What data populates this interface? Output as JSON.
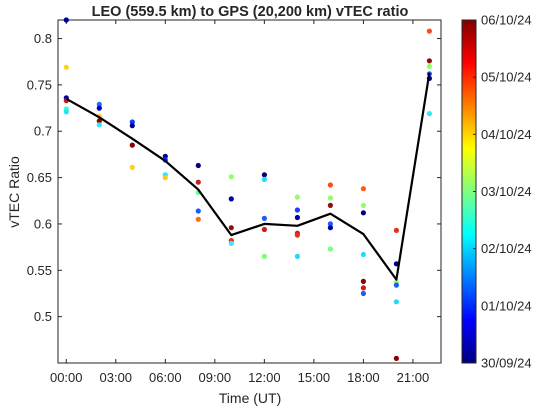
{
  "chart_data": {
    "type": "scatter",
    "title": "LEO (559.5 km) to GPS (20,200 km) vTEC ratio",
    "xlabel": "Time (UT)",
    "ylabel": "vTEC Ratio",
    "xlim": [
      -0.5,
      22.7
    ],
    "ylim": [
      0.45,
      0.82
    ],
    "xticks": [
      0,
      3,
      6,
      9,
      12,
      15,
      18,
      21
    ],
    "xtick_labels": [
      "00:00",
      "03:00",
      "06:00",
      "09:00",
      "12:00",
      "15:00",
      "18:00",
      "21:00"
    ],
    "yticks": [
      0.5,
      0.55,
      0.6,
      0.65,
      0.7,
      0.75,
      0.8
    ],
    "ytick_labels": [
      "0.5",
      "0.55",
      "0.6",
      "0.65",
      "0.7",
      "0.75",
      "0.8"
    ],
    "grid": false,
    "mean_line": {
      "color": "#000000",
      "x": [
        0,
        2,
        4,
        6,
        8,
        10,
        12,
        14,
        16,
        18,
        20,
        22
      ],
      "y": [
        0.735,
        0.715,
        0.692,
        0.668,
        0.637,
        0.588,
        0.6,
        0.598,
        0.611,
        0.589,
        0.54,
        0.763
      ]
    },
    "points": [
      {
        "x": 0,
        "y": 0.82,
        "color": "#00008f"
      },
      {
        "x": 0,
        "y": 0.769,
        "color": "#ffd21a"
      },
      {
        "x": 0,
        "y": 0.736,
        "color": "#0000a0"
      },
      {
        "x": 0,
        "y": 0.733,
        "color": "#c81a1a"
      },
      {
        "x": 0,
        "y": 0.724,
        "color": "#3bffc4"
      },
      {
        "x": 0,
        "y": 0.721,
        "color": "#25e0ff"
      },
      {
        "x": 2,
        "y": 0.729,
        "color": "#1e6fff"
      },
      {
        "x": 2,
        "y": 0.725,
        "color": "#0000c8"
      },
      {
        "x": 2,
        "y": 0.716,
        "color": "#ffd21a"
      },
      {
        "x": 2,
        "y": 0.711,
        "color": "#8f0000"
      },
      {
        "x": 2,
        "y": 0.707,
        "color": "#35e6ff"
      },
      {
        "x": 4,
        "y": 0.71,
        "color": "#0a3cff"
      },
      {
        "x": 4,
        "y": 0.706,
        "color": "#000090"
      },
      {
        "x": 4,
        "y": 0.685,
        "color": "#8f0000"
      },
      {
        "x": 4,
        "y": 0.661,
        "color": "#ffd21a"
      },
      {
        "x": 6,
        "y": 0.673,
        "color": "#00007f"
      },
      {
        "x": 6,
        "y": 0.669,
        "color": "#0a30ff"
      },
      {
        "x": 6,
        "y": 0.653,
        "color": "#25e6ff"
      },
      {
        "x": 6,
        "y": 0.65,
        "color": "#ffc81a"
      },
      {
        "x": 8,
        "y": 0.663,
        "color": "#00007f"
      },
      {
        "x": 8,
        "y": 0.645,
        "color": "#c81e1e"
      },
      {
        "x": 8,
        "y": 0.634,
        "color": "#5aff8f"
      },
      {
        "x": 8,
        "y": 0.614,
        "color": "#1e5aff"
      },
      {
        "x": 8,
        "y": 0.605,
        "color": "#ff6a1a"
      },
      {
        "x": 10,
        "y": 0.651,
        "color": "#8fff6a"
      },
      {
        "x": 10,
        "y": 0.627,
        "color": "#0000aa"
      },
      {
        "x": 10,
        "y": 0.596,
        "color": "#8f1010"
      },
      {
        "x": 10,
        "y": 0.582,
        "color": "#e8301a"
      },
      {
        "x": 10,
        "y": 0.579,
        "color": "#35e6ff"
      },
      {
        "x": 12,
        "y": 0.653,
        "color": "#00006f"
      },
      {
        "x": 12,
        "y": 0.648,
        "color": "#25d8ff"
      },
      {
        "x": 12,
        "y": 0.606,
        "color": "#1e5aff"
      },
      {
        "x": 12,
        "y": 0.594,
        "color": "#c81e1e"
      },
      {
        "x": 12,
        "y": 0.565,
        "color": "#7aff7a"
      },
      {
        "x": 14,
        "y": 0.629,
        "color": "#8fff6a"
      },
      {
        "x": 14,
        "y": 0.615,
        "color": "#1e3cff"
      },
      {
        "x": 14,
        "y": 0.607,
        "color": "#0000a0"
      },
      {
        "x": 14,
        "y": 0.59,
        "color": "#c81e1e"
      },
      {
        "x": 14,
        "y": 0.588,
        "color": "#e8301a"
      },
      {
        "x": 14,
        "y": 0.565,
        "color": "#25d8ff"
      },
      {
        "x": 16,
        "y": 0.642,
        "color": "#ff4a1a"
      },
      {
        "x": 16,
        "y": 0.628,
        "color": "#8fff6a"
      },
      {
        "x": 16,
        "y": 0.62,
        "color": "#8f1010"
      },
      {
        "x": 16,
        "y": 0.6,
        "color": "#1e5aff"
      },
      {
        "x": 16,
        "y": 0.596,
        "color": "#0000aa"
      },
      {
        "x": 16,
        "y": 0.573,
        "color": "#7aff7a"
      },
      {
        "x": 18,
        "y": 0.638,
        "color": "#ff5a1a"
      },
      {
        "x": 18,
        "y": 0.62,
        "color": "#8fff6a"
      },
      {
        "x": 18,
        "y": 0.612,
        "color": "#00007f"
      },
      {
        "x": 18,
        "y": 0.567,
        "color": "#25d8ff"
      },
      {
        "x": 18,
        "y": 0.538,
        "color": "#8f0000"
      },
      {
        "x": 18,
        "y": 0.531,
        "color": "#c81e1e"
      },
      {
        "x": 18,
        "y": 0.525,
        "color": "#1e5aff"
      },
      {
        "x": 20,
        "y": 0.593,
        "color": "#e8301a"
      },
      {
        "x": 20,
        "y": 0.557,
        "color": "#000090"
      },
      {
        "x": 20,
        "y": 0.537,
        "color": "#8fff6a"
      },
      {
        "x": 20,
        "y": 0.534,
        "color": "#1e5aff"
      },
      {
        "x": 20,
        "y": 0.516,
        "color": "#25d8ff"
      },
      {
        "x": 20,
        "y": 0.455,
        "color": "#8f0000"
      },
      {
        "x": 22,
        "y": 0.808,
        "color": "#ff4a1a"
      },
      {
        "x": 22,
        "y": 0.776,
        "color": "#8f1010"
      },
      {
        "x": 22,
        "y": 0.77,
        "color": "#8fff6a"
      },
      {
        "x": 22,
        "y": 0.762,
        "color": "#1e5aff"
      },
      {
        "x": 22,
        "y": 0.757,
        "color": "#0000aa"
      },
      {
        "x": 22,
        "y": 0.719,
        "color": "#35e6ff"
      }
    ],
    "colorbar": {
      "colormap": "jet",
      "tick_labels": [
        "30/09/24",
        "01/10/24",
        "02/10/24",
        "03/10/24",
        "04/10/24",
        "05/10/24",
        "06/10/24"
      ],
      "stops": [
        "#00007f",
        "#0000ff",
        "#007fff",
        "#00ffff",
        "#7fff7f",
        "#ffff00",
        "#ff7f00",
        "#ff0000",
        "#7f0000"
      ]
    }
  }
}
